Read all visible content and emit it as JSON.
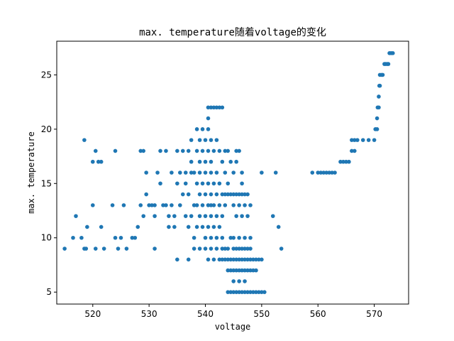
{
  "chart_data": {
    "type": "scatter",
    "title": "max. temperature随着voltage的变化",
    "xlabel": "voltage",
    "ylabel": "max. temperature",
    "xlim": [
      513.6,
      576.1
    ],
    "ylim": [
      3.9,
      28.1
    ],
    "xticks": [
      520,
      530,
      540,
      550,
      560,
      570
    ],
    "yticks": [
      5,
      10,
      15,
      20,
      25
    ],
    "grid": false,
    "marker_color": "#1f77b4",
    "series": [
      {
        "points": [
          [
            515,
            9
          ],
          [
            517,
            12
          ],
          [
            516.5,
            10
          ],
          [
            518,
            10
          ],
          [
            518.5,
            9
          ],
          [
            518.8,
            9
          ],
          [
            519,
            11
          ],
          [
            518.5,
            19
          ],
          [
            520,
            13
          ],
          [
            520,
            17
          ],
          [
            520.5,
            18
          ],
          [
            520.5,
            9
          ],
          [
            521,
            17
          ],
          [
            521.5,
            17
          ],
          [
            521.5,
            11
          ],
          [
            522,
            9
          ],
          [
            523.5,
            13
          ],
          [
            524,
            18
          ],
          [
            524,
            10
          ],
          [
            524.5,
            9
          ],
          [
            525,
            10
          ],
          [
            525.5,
            13
          ],
          [
            526,
            9
          ],
          [
            527,
            10
          ],
          [
            527.5,
            10
          ],
          [
            528,
            11
          ],
          [
            528.5,
            13
          ],
          [
            528.5,
            18
          ],
          [
            529,
            18
          ],
          [
            529,
            12
          ],
          [
            529.5,
            16
          ],
          [
            529.5,
            14
          ],
          [
            530,
            13
          ],
          [
            530.5,
            13
          ],
          [
            531,
            13
          ],
          [
            531,
            12
          ],
          [
            531,
            9
          ],
          [
            531.5,
            16
          ],
          [
            532,
            15
          ],
          [
            532,
            18
          ],
          [
            532.5,
            13
          ],
          [
            533,
            13
          ],
          [
            533,
            18
          ],
          [
            533.5,
            12
          ],
          [
            533.5,
            11
          ],
          [
            534,
            13
          ],
          [
            534,
            16
          ],
          [
            534.5,
            12
          ],
          [
            534.5,
            11
          ],
          [
            535,
            15
          ],
          [
            535,
            18
          ],
          [
            535,
            8
          ],
          [
            535.5,
            13
          ],
          [
            535.5,
            16
          ],
          [
            536,
            18
          ],
          [
            536,
            14
          ],
          [
            536.5,
            12
          ],
          [
            536.5,
            16
          ],
          [
            536.5,
            15
          ],
          [
            537,
            18
          ],
          [
            537,
            14
          ],
          [
            537,
            11
          ],
          [
            537,
            8
          ],
          [
            537.5,
            16
          ],
          [
            537.5,
            17
          ],
          [
            537.5,
            19
          ],
          [
            537.5,
            12
          ],
          [
            538,
            16
          ],
          [
            538,
            13
          ],
          [
            538,
            10
          ],
          [
            538,
            9
          ],
          [
            538.5,
            18
          ],
          [
            538.5,
            13
          ],
          [
            538.5,
            20
          ],
          [
            538.5,
            15
          ],
          [
            538.5,
            11
          ],
          [
            539,
            17
          ],
          [
            539,
            19
          ],
          [
            539,
            16
          ],
          [
            539,
            14
          ],
          [
            539,
            12
          ],
          [
            539,
            9
          ],
          [
            539.5,
            20
          ],
          [
            539.5,
            18
          ],
          [
            539.5,
            15
          ],
          [
            539.5,
            13
          ],
          [
            539.5,
            11
          ],
          [
            540,
            19
          ],
          [
            540,
            17
          ],
          [
            540,
            16
          ],
          [
            540,
            14
          ],
          [
            540,
            12
          ],
          [
            540,
            10
          ],
          [
            540,
            9
          ],
          [
            540.5,
            20
          ],
          [
            540.5,
            22
          ],
          [
            540.5,
            21
          ],
          [
            540.5,
            18
          ],
          [
            540.5,
            15
          ],
          [
            540.5,
            13
          ],
          [
            540.5,
            11
          ],
          [
            540.5,
            8
          ],
          [
            541,
            22
          ],
          [
            541,
            19
          ],
          [
            541,
            17
          ],
          [
            541,
            16
          ],
          [
            541,
            14
          ],
          [
            541,
            13
          ],
          [
            541,
            12
          ],
          [
            541,
            10
          ],
          [
            541,
            9
          ],
          [
            541.5,
            22
          ],
          [
            541.5,
            18
          ],
          [
            541.5,
            15
          ],
          [
            541.5,
            13
          ],
          [
            541.5,
            11
          ],
          [
            541.5,
            8
          ],
          [
            542,
            22
          ],
          [
            542,
            19
          ],
          [
            542,
            16
          ],
          [
            542,
            14
          ],
          [
            542,
            12
          ],
          [
            542,
            10
          ],
          [
            542,
            9
          ],
          [
            542.5,
            22
          ],
          [
            542.5,
            18
          ],
          [
            542.5,
            15
          ],
          [
            542.5,
            13
          ],
          [
            542.5,
            11
          ],
          [
            542.5,
            8
          ],
          [
            543,
            22
          ],
          [
            543,
            17
          ],
          [
            543,
            14
          ],
          [
            543,
            12
          ],
          [
            543,
            10
          ],
          [
            543,
            9
          ],
          [
            543,
            8
          ],
          [
            543.5,
            18
          ],
          [
            543.5,
            16
          ],
          [
            543.5,
            14
          ],
          [
            543.5,
            13
          ],
          [
            543.5,
            9
          ],
          [
            543.5,
            8
          ],
          [
            544,
            18
          ],
          [
            544,
            15
          ],
          [
            544,
            14
          ],
          [
            544,
            8
          ],
          [
            544,
            9
          ],
          [
            544,
            7
          ],
          [
            544,
            5
          ],
          [
            544.5,
            17
          ],
          [
            544.5,
            14
          ],
          [
            544.5,
            10
          ],
          [
            544.5,
            8
          ],
          [
            544.5,
            7
          ],
          [
            544.5,
            5
          ],
          [
            545,
            16
          ],
          [
            545,
            14
          ],
          [
            545,
            13
          ],
          [
            545,
            10
          ],
          [
            545,
            9
          ],
          [
            545,
            8
          ],
          [
            545,
            7
          ],
          [
            545,
            6
          ],
          [
            545,
            5
          ],
          [
            545.5,
            18
          ],
          [
            545.5,
            17
          ],
          [
            545.5,
            14
          ],
          [
            545.5,
            12
          ],
          [
            545.5,
            9
          ],
          [
            545.5,
            8
          ],
          [
            545.5,
            7
          ],
          [
            545.5,
            5
          ],
          [
            546,
            18
          ],
          [
            546,
            14
          ],
          [
            546,
            13
          ],
          [
            546,
            10
          ],
          [
            546,
            9
          ],
          [
            546,
            8
          ],
          [
            546,
            7
          ],
          [
            546,
            6
          ],
          [
            546,
            5
          ],
          [
            546.5,
            16
          ],
          [
            546.5,
            15
          ],
          [
            546.5,
            14
          ],
          [
            546.5,
            12
          ],
          [
            546.5,
            9
          ],
          [
            546.5,
            8
          ],
          [
            546.5,
            7
          ],
          [
            546.5,
            5
          ],
          [
            547,
            14
          ],
          [
            547,
            13
          ],
          [
            547,
            10
          ],
          [
            547,
            9
          ],
          [
            547,
            8
          ],
          [
            547,
            7
          ],
          [
            547,
            6
          ],
          [
            547,
            5
          ],
          [
            547.5,
            14
          ],
          [
            547.5,
            12
          ],
          [
            547.5,
            9
          ],
          [
            547.5,
            8
          ],
          [
            547.5,
            7
          ],
          [
            547.5,
            5
          ],
          [
            548,
            13
          ],
          [
            548,
            10
          ],
          [
            548,
            9
          ],
          [
            548,
            8
          ],
          [
            548,
            7
          ],
          [
            548,
            5
          ],
          [
            548.5,
            8
          ],
          [
            548.5,
            7
          ],
          [
            548.5,
            5
          ],
          [
            549,
            8
          ],
          [
            549,
            7
          ],
          [
            549,
            5
          ],
          [
            549.5,
            8
          ],
          [
            549.5,
            5
          ],
          [
            550,
            8
          ],
          [
            550,
            5
          ],
          [
            550.5,
            5
          ],
          [
            550,
            16
          ],
          [
            552,
            12
          ],
          [
            552.5,
            16
          ],
          [
            553,
            11
          ],
          [
            553.5,
            9
          ],
          [
            559,
            16
          ],
          [
            560,
            16
          ],
          [
            560.5,
            16
          ],
          [
            561,
            16
          ],
          [
            561.5,
            16
          ],
          [
            562,
            16
          ],
          [
            562.5,
            16
          ],
          [
            563,
            16
          ],
          [
            564,
            17
          ],
          [
            564.5,
            17
          ],
          [
            565,
            17
          ],
          [
            565.5,
            17
          ],
          [
            566,
            18
          ],
          [
            566.5,
            18
          ],
          [
            566,
            19
          ],
          [
            566.5,
            19
          ],
          [
            567,
            19
          ],
          [
            568,
            19
          ],
          [
            569,
            19
          ],
          [
            570,
            19
          ],
          [
            570.2,
            20
          ],
          [
            570.5,
            20
          ],
          [
            570.5,
            21
          ],
          [
            570.6,
            22
          ],
          [
            570.8,
            22
          ],
          [
            570.8,
            23
          ],
          [
            570.9,
            24
          ],
          [
            571,
            24
          ],
          [
            571,
            25
          ],
          [
            571.3,
            25
          ],
          [
            571.5,
            25
          ],
          [
            571.8,
            26
          ],
          [
            572,
            26
          ],
          [
            572.3,
            26
          ],
          [
            572.5,
            26
          ],
          [
            572.7,
            27
          ],
          [
            573,
            27
          ],
          [
            573.3,
            27
          ]
        ]
      }
    ]
  }
}
